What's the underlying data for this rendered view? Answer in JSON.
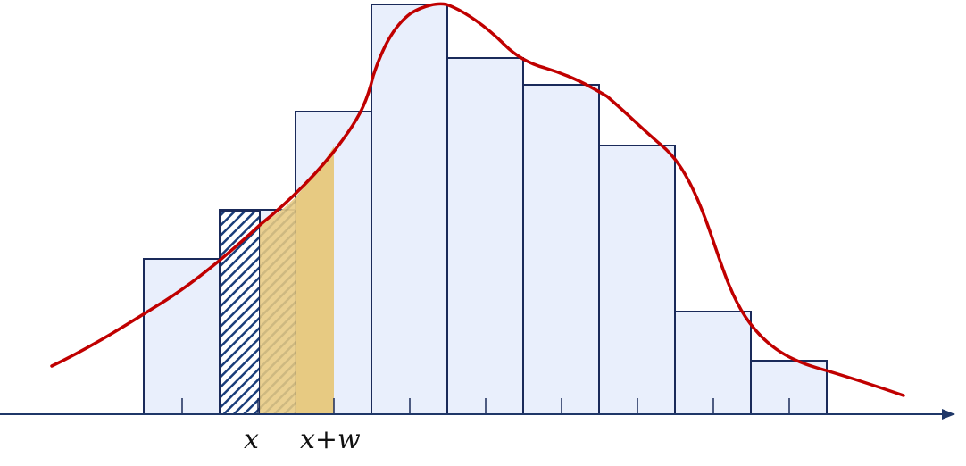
{
  "labels": {
    "x": "x",
    "x_plus_w": "x+w"
  },
  "colors": {
    "bar_fill": "#e9effc",
    "bar_stroke": "#1a2a5a",
    "hatch": "#1a3d7a",
    "highlight": "#e6c777",
    "curve": "#c00000",
    "axis": "#1f3768"
  }
}
